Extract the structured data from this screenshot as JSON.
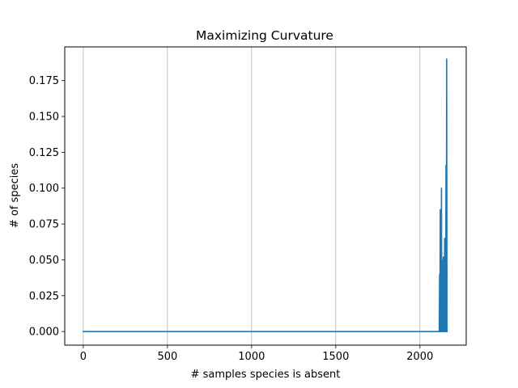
{
  "chart_data": {
    "type": "line",
    "title": "Maximizing Curvature",
    "xlabel": "# samples species is absent",
    "ylabel": "# of species",
    "xlim": [
      -110,
      2275
    ],
    "ylim": [
      -0.0095,
      0.1985
    ],
    "xticks": [
      0,
      500,
      1000,
      1500,
      2000
    ],
    "yticks": [
      0.0,
      0.025,
      0.05,
      0.075,
      0.1,
      0.125,
      0.15,
      0.175
    ],
    "xtick_labels": [
      "0",
      "500",
      "1000",
      "1500",
      "2000"
    ],
    "ytick_labels": [
      "0.000",
      "0.025",
      "0.050",
      "0.075",
      "0.100",
      "0.125",
      "0.150",
      "0.175"
    ],
    "grid": {
      "x": true,
      "y": false
    },
    "series": [
      {
        "color": "#1f77b4",
        "x": [
          0,
          2110,
          2115,
          2117,
          2119,
          2121,
          2123,
          2124,
          2126,
          2128,
          2130,
          2131,
          2133,
          2135,
          2137,
          2139,
          2141,
          2143,
          2145,
          2147,
          2149,
          2151,
          2153,
          2155,
          2157,
          2159,
          2161
        ],
        "y": [
          0.0,
          0.0,
          0.0,
          0.04,
          0.0,
          0.085,
          0.0,
          0.07,
          0.0,
          0.1,
          0.0,
          0.05,
          0.0,
          0.03,
          0.0,
          0.052,
          0.0,
          0.045,
          0.0,
          0.065,
          0.0,
          0.03,
          0.0,
          0.116,
          0.0,
          0.19,
          0.0
        ]
      }
    ]
  }
}
